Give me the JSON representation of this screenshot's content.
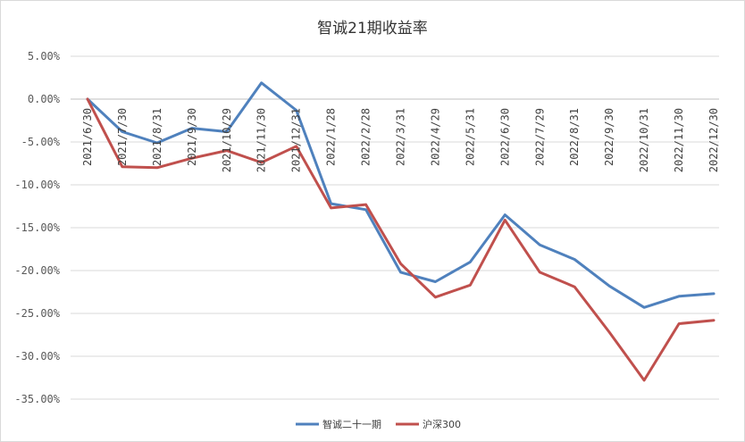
{
  "chart_data": {
    "type": "line",
    "title": "智诚21期收益率",
    "categories": [
      "2021/6/30",
      "2021/7/30",
      "2021/8/31",
      "2021/9/30",
      "2021/10/29",
      "2021/11/30",
      "2021/12/31",
      "2022/1/28",
      "2022/2/28",
      "2022/3/31",
      "2022/4/29",
      "2022/5/31",
      "2022/6/30",
      "2022/7/29",
      "2022/8/31",
      "2022/9/30",
      "2022/10/31",
      "2022/11/30",
      "2022/12/30"
    ],
    "y_ticks": [
      "5.00%",
      "0.00%",
      "-5.00%",
      "-10.00%",
      "-15.00%",
      "-20.00%",
      "-25.00%",
      "-30.00%",
      "-35.00%"
    ],
    "ylim": [
      -35,
      5
    ],
    "y_unit": "%",
    "legend_position": "bottom",
    "grid": true,
    "series": [
      {
        "name": "智诚二十一期",
        "color": "#4f81bd",
        "values": [
          0.0,
          -3.8,
          -5.1,
          -3.4,
          -3.8,
          1.9,
          -1.3,
          -12.2,
          -12.9,
          -20.2,
          -21.3,
          -19.0,
          -13.5,
          -17.0,
          -18.7,
          -21.8,
          -24.3,
          -23.0,
          -22.7
        ]
      },
      {
        "name": "沪深300",
        "color": "#c0504d",
        "values": [
          0.0,
          -7.9,
          -8.0,
          -6.9,
          -6.0,
          -7.4,
          -5.5,
          -12.7,
          -12.3,
          -19.2,
          -23.1,
          -21.7,
          -14.1,
          -20.2,
          -21.9,
          -27.2,
          -32.8,
          -26.2,
          -25.8
        ]
      }
    ]
  }
}
